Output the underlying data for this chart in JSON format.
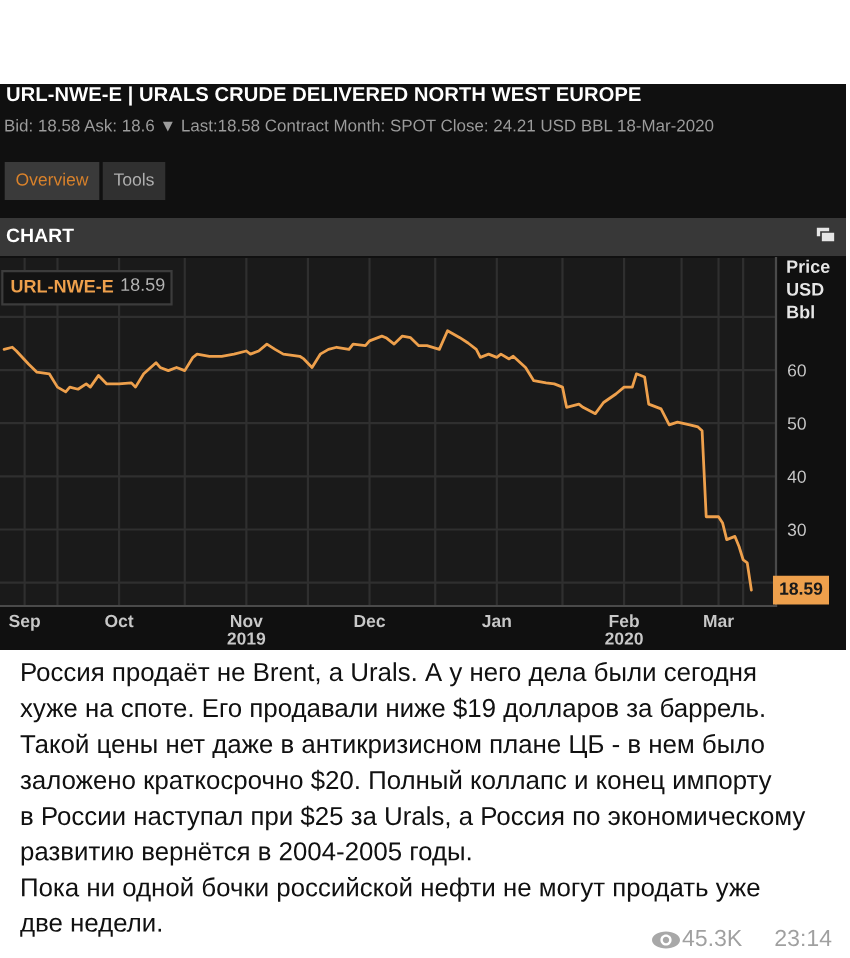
{
  "chart_data": {
    "type": "line",
    "title": "URL-NWE-E | URALS CRUDE DELIVERED NORTH WEST EUROPE",
    "subtitle": "Bid: 18.58 Ask: 18.6 ▼ Last:18.58 Contract Month: SPOT Close: 24.21 USD BBL 18-Mar-2020",
    "ylabel": "Price\nUSD\nBbl",
    "x": [
      "2019-09-18",
      "2019-09-20",
      "2019-09-21",
      "2019-09-24",
      "2019-09-26",
      "2019-09-29",
      "2019-10-01",
      "2019-10-03",
      "2019-10-04",
      "2019-10-06",
      "2019-10-08",
      "2019-10-09",
      "2019-10-11",
      "2019-10-13",
      "2019-10-16",
      "2019-10-19",
      "2019-10-20",
      "2019-10-22",
      "2019-10-25",
      "2019-10-26",
      "2019-10-28",
      "2019-10-30",
      "2019-11-01",
      "2019-11-03",
      "2019-11-04",
      "2019-11-07",
      "2019-11-10",
      "2019-11-13",
      "2019-11-16",
      "2019-11-17",
      "2019-11-19",
      "2019-11-21",
      "2019-11-23",
      "2019-11-25",
      "2019-11-29",
      "2019-11-30",
      "2019-12-02",
      "2019-12-04",
      "2019-12-06",
      "2019-12-08",
      "2019-12-11",
      "2019-12-12",
      "2019-12-15",
      "2019-12-16",
      "2019-12-19",
      "2019-12-20",
      "2019-12-22",
      "2019-12-24",
      "2019-12-26",
      "2019-12-28",
      "2019-12-30",
      "2020-01-02",
      "2020-01-04",
      "2020-01-07",
      "2020-01-09",
      "2020-01-11",
      "2020-01-12",
      "2020-01-14",
      "2020-01-16",
      "2020-01-17",
      "2020-01-19",
      "2020-01-20",
      "2020-01-23",
      "2020-01-25",
      "2020-01-28",
      "2020-01-30",
      "2020-02-01",
      "2020-02-02",
      "2020-02-05",
      "2020-02-06",
      "2020-02-09",
      "2020-02-11",
      "2020-02-14",
      "2020-02-16",
      "2020-02-18",
      "2020-02-19",
      "2020-02-21",
      "2020-02-22",
      "2020-02-25",
      "2020-02-27",
      "2020-02-29",
      "2020-03-03",
      "2020-03-05",
      "2020-03-06",
      "2020-03-07",
      "2020-03-10",
      "2020-03-11",
      "2020-03-12",
      "2020-03-14",
      "2020-03-15",
      "2020-03-16",
      "2020-03-17",
      "2020-03-18"
    ],
    "series": [
      {
        "name": "URL-NWE-E",
        "color": "#eea04c",
        "values": [
          63.9,
          64.3,
          63.6,
          61.1,
          59.6,
          59.3,
          56.8,
          55.9,
          56.8,
          56.4,
          57.4,
          56.8,
          59.0,
          57.4,
          57.4,
          57.6,
          56.8,
          59.3,
          61.4,
          60.5,
          59.9,
          60.5,
          59.9,
          62.4,
          63.0,
          62.6,
          62.6,
          63.0,
          63.6,
          63.0,
          63.6,
          64.9,
          63.9,
          63.0,
          62.6,
          62.1,
          60.5,
          63.0,
          63.9,
          64.3,
          63.9,
          64.9,
          64.6,
          65.5,
          66.4,
          66.1,
          64.9,
          66.4,
          66.1,
          64.6,
          64.6,
          63.9,
          67.4,
          66.1,
          65.1,
          63.9,
          62.4,
          63.0,
          62.4,
          63.0,
          62.1,
          62.6,
          60.5,
          58.0,
          57.6,
          57.4,
          56.8,
          53.0,
          53.6,
          53.0,
          51.8,
          53.9,
          55.5,
          56.8,
          56.8,
          59.3,
          58.7,
          53.6,
          52.7,
          49.7,
          50.2,
          49.7,
          49.3,
          48.6,
          32.4,
          32.4,
          31.2,
          28.1,
          28.7,
          26.8,
          24.3,
          23.7,
          18.59
        ],
        "value_labels": [
          null,
          null,
          null,
          null,
          null,
          null,
          null,
          null,
          null,
          null,
          null,
          null,
          null,
          null,
          null,
          null,
          null,
          null,
          null,
          null,
          null,
          null,
          null,
          null,
          null,
          null,
          null,
          null,
          null,
          null,
          null,
          null,
          null,
          null,
          null,
          null,
          null,
          null,
          null,
          null,
          null,
          null,
          null,
          null,
          null,
          null,
          null,
          null,
          null,
          null,
          null,
          null,
          null,
          null,
          null,
          null,
          null,
          null,
          null,
          null,
          null,
          null,
          null,
          null,
          null,
          null,
          null,
          null,
          null,
          null,
          null,
          null,
          null,
          null,
          null,
          null,
          null,
          null,
          null,
          null,
          null,
          null,
          null,
          null,
          null,
          null,
          null,
          null,
          null,
          null,
          null,
          null,
          "18.59"
        ]
      }
    ],
    "xlim": [
      "2019-09-17",
      "2020-03-24"
    ],
    "xticks": [
      {
        "value": "2019-09-23",
        "label": "Sep"
      },
      {
        "value": "2019-10-01",
        "label": null
      },
      {
        "value": "2019-10-16",
        "label": "Oct"
      },
      {
        "value": "2019-11-01",
        "label": null
      },
      {
        "value": "2019-11-16",
        "label": "Nov\n2019"
      },
      {
        "value": "2019-12-01",
        "label": null
      },
      {
        "value": "2019-12-16",
        "label": "Dec"
      },
      {
        "value": "2020-01-01",
        "label": null
      },
      {
        "value": "2020-01-16",
        "label": "Jan"
      },
      {
        "value": "2020-02-01",
        "label": null
      },
      {
        "value": "2020-02-16",
        "label": "Feb\n2020"
      },
      {
        "value": "2020-03-01",
        "label": null
      },
      {
        "value": "2020-03-10",
        "label": "Mar"
      },
      {
        "value": "2020-03-16",
        "label": null
      }
    ],
    "ylim": [
      15.6,
      81.1
    ],
    "yticks": [
      {
        "value": 20,
        "label": null
      },
      30,
      40,
      50,
      60,
      {
        "value": 70,
        "label": null
      }
    ],
    "grid": true,
    "legend": "top left",
    "annotations": [
      "Overview",
      "Tools",
      "CHART",
      "18.59",
      "Россия продаёт не Brent, а Urals. А у него дела были сегодня\nхуже на споте. Его продавали ниже $19 долларов за баррель.\nТакой цены нет даже в антикризисном плане ЦБ - в нем было\nзаложено краткосрочно $20. Полный коллапс и конец импорту\nв России наступал при $25 за Urals, а Россия по экономическому\nразвитию вернётся в 2004-2005 годы.\nПока ни одной бочки российской нефти не могут продать уже\nдве недели.",
      "45.3K",
      "23:14"
    ]
  }
}
